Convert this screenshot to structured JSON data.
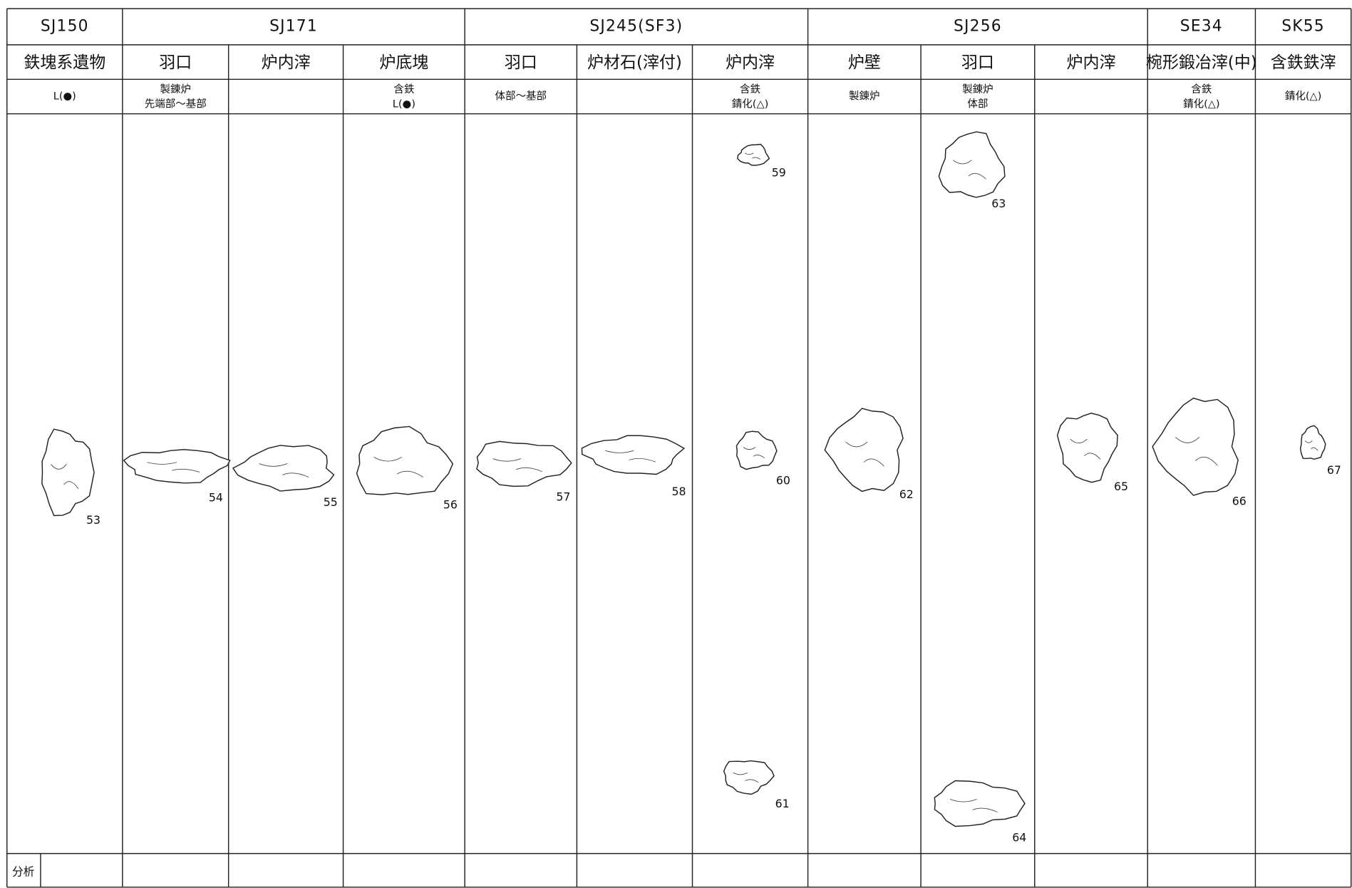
{
  "table": {
    "groups": [
      {
        "label": "SJ150",
        "span": 1
      },
      {
        "label": "SJ171",
        "span": 3
      },
      {
        "label": "SJ245(SF3)",
        "span": 3
      },
      {
        "label": "SJ256",
        "span": 3
      },
      {
        "label": "SE34",
        "span": 1
      },
      {
        "label": "SK55",
        "span": 1
      }
    ],
    "columns": [
      {
        "label": "鉄塊系遺物",
        "note": [
          "L(●)"
        ],
        "specimens": [
          53
        ]
      },
      {
        "label": "羽口",
        "note": [
          "製錬炉",
          "先端部～基部"
        ],
        "specimens": [
          54
        ]
      },
      {
        "label": "炉内滓",
        "note": [],
        "specimens": [
          55
        ]
      },
      {
        "label": "炉底塊",
        "note": [
          "含鉄",
          "L(●)"
        ],
        "specimens": [
          56
        ]
      },
      {
        "label": "羽口",
        "note": [
          "体部～基部"
        ],
        "specimens": [
          57
        ]
      },
      {
        "label": "炉材石(滓付)",
        "note": [],
        "specimens": [
          58
        ]
      },
      {
        "label": "炉内滓",
        "note": [
          "含鉄",
          "錆化(△)"
        ],
        "specimens": [
          59,
          60,
          61
        ]
      },
      {
        "label": "炉壁",
        "note": [
          "製錬炉"
        ],
        "specimens": [
          62
        ]
      },
      {
        "label": "羽口",
        "note": [
          "製錬炉",
          "体部"
        ],
        "specimens": [
          63,
          64
        ]
      },
      {
        "label": "炉内滓",
        "note": [],
        "specimens": [
          65
        ]
      },
      {
        "label": "椀形鍛冶滓(中)",
        "note": [
          "含鉄",
          "錆化(△)"
        ],
        "specimens": [
          66
        ]
      },
      {
        "label": "含鉄鉄滓",
        "note": [
          "錆化(△)"
        ],
        "specimens": [
          67
        ]
      }
    ],
    "footer": "分析"
  }
}
